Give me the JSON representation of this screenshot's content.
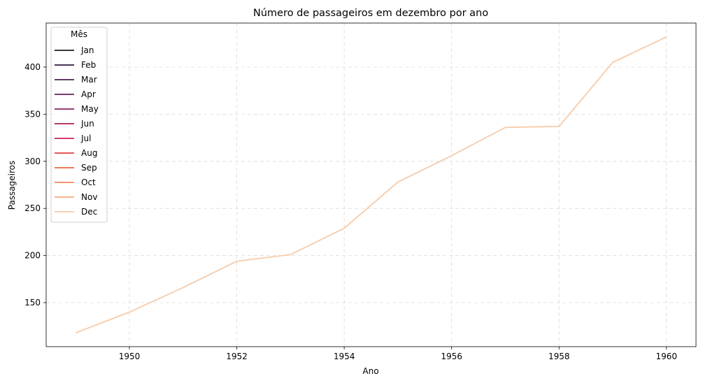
{
  "chart_data": {
    "type": "line",
    "title": "Número de passageiros em dezembro por ano",
    "xlabel": "Ano",
    "ylabel": "Passageiros",
    "xlim": [
      1948.45,
      1960.55
    ],
    "ylim": [
      103.3,
      446.7
    ],
    "xticks": [
      1950,
      1952,
      1954,
      1956,
      1958,
      1960
    ],
    "yticks": [
      150,
      200,
      250,
      300,
      350,
      400
    ],
    "grid": true,
    "legend": {
      "title": "Mês",
      "placement": "top-left",
      "entries": [
        {
          "name": "Jan",
          "color": "#1f1726"
        },
        {
          "name": "Feb",
          "color": "#311a3c"
        },
        {
          "name": "Mar",
          "color": "#4b1d50"
        },
        {
          "name": "Apr",
          "color": "#6a1f5b"
        },
        {
          "name": "May",
          "color": "#8a215f"
        },
        {
          "name": "Jun",
          "color": "#ab1f5c"
        },
        {
          "name": "Jul",
          "color": "#cb2250"
        },
        {
          "name": "Aug",
          "color": "#e3403f"
        },
        {
          "name": "Sep",
          "color": "#ee6442"
        },
        {
          "name": "Oct",
          "color": "#f4875d"
        },
        {
          "name": "Nov",
          "color": "#f6a97e"
        },
        {
          "name": "Dec",
          "color": "#f6cba9"
        }
      ]
    },
    "series": [
      {
        "name": "Dec",
        "color": "#f6cba9",
        "x": [
          1949,
          1950,
          1951,
          1952,
          1953,
          1954,
          1955,
          1956,
          1957,
          1958,
          1959,
          1960
        ],
        "values": [
          118,
          140,
          166,
          194,
          201,
          229,
          278,
          306,
          336,
          337,
          405,
          432
        ]
      }
    ]
  }
}
